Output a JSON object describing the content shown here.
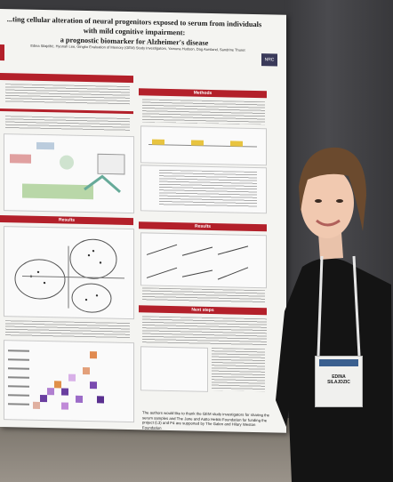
{
  "poster": {
    "title_line1": "...ting cellular alteration of neural progenitors exposed to serum from individuals with mild cognitive impairment:",
    "title_line2": "a prognostic biomarker for Alzheimer's disease",
    "authors": "Edina Silajdžić, Hyunah Lee, Gingko Evaluation of Memory (GEM) Study Investigators, Yamuna Hudson, Dag Aarsland, Sandrine Thuret",
    "logo": "NRC",
    "section_methods": "Methods",
    "section_results_left": "Results",
    "section_results_right": "Results",
    "section_next_steps": "Next steps",
    "footer_text": "The authors would like to thank the GEM study investigators for sharing the serum samples and The Jane and Aatto Heikki Foundation for funding the project (L3) and P4 are supported by The Galen and Hilary Weston Foundation"
  },
  "badge": {
    "name_line1": "EDINA",
    "name_line2": "SILAJDZIC"
  }
}
